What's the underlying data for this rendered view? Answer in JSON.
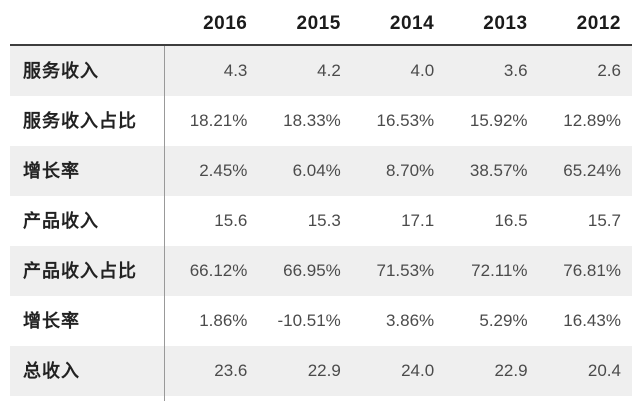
{
  "colors": {
    "row_stripe": "#efefef",
    "header_rule": "#3d3d3d",
    "column_rule": "#999999",
    "header_text": "#1b1b1b",
    "label_text": "#222222",
    "value_text": "#4b4b4b"
  },
  "chart_data": {
    "type": "table",
    "columns": [
      "2016",
      "2015",
      "2014",
      "2013",
      "2012"
    ],
    "row_labels": [
      "服务收入",
      "服务收入占比",
      "增长率",
      "产品收入",
      "产品收入占比",
      "增长率",
      "总收入"
    ],
    "rows": [
      [
        "4.3",
        "4.2",
        "4.0",
        "3.6",
        "2.6"
      ],
      [
        "18.21%",
        "18.33%",
        "16.53%",
        "15.92%",
        "12.89%"
      ],
      [
        "2.45%",
        "6.04%",
        "8.70%",
        "38.57%",
        "65.24%"
      ],
      [
        "15.6",
        "15.3",
        "17.1",
        "16.5",
        "15.7"
      ],
      [
        "66.12%",
        "66.95%",
        "71.53%",
        "72.11%",
        "76.81%"
      ],
      [
        "1.86%",
        "-10.51%",
        "3.86%",
        "5.29%",
        "16.43%"
      ],
      [
        "23.6",
        "22.9",
        "24.0",
        "22.9",
        "20.4"
      ]
    ],
    "layout_hints": {
      "striped_row_indices": [
        0,
        2,
        4,
        6
      ],
      "value_alignment": "right",
      "header_style": "bold"
    }
  }
}
